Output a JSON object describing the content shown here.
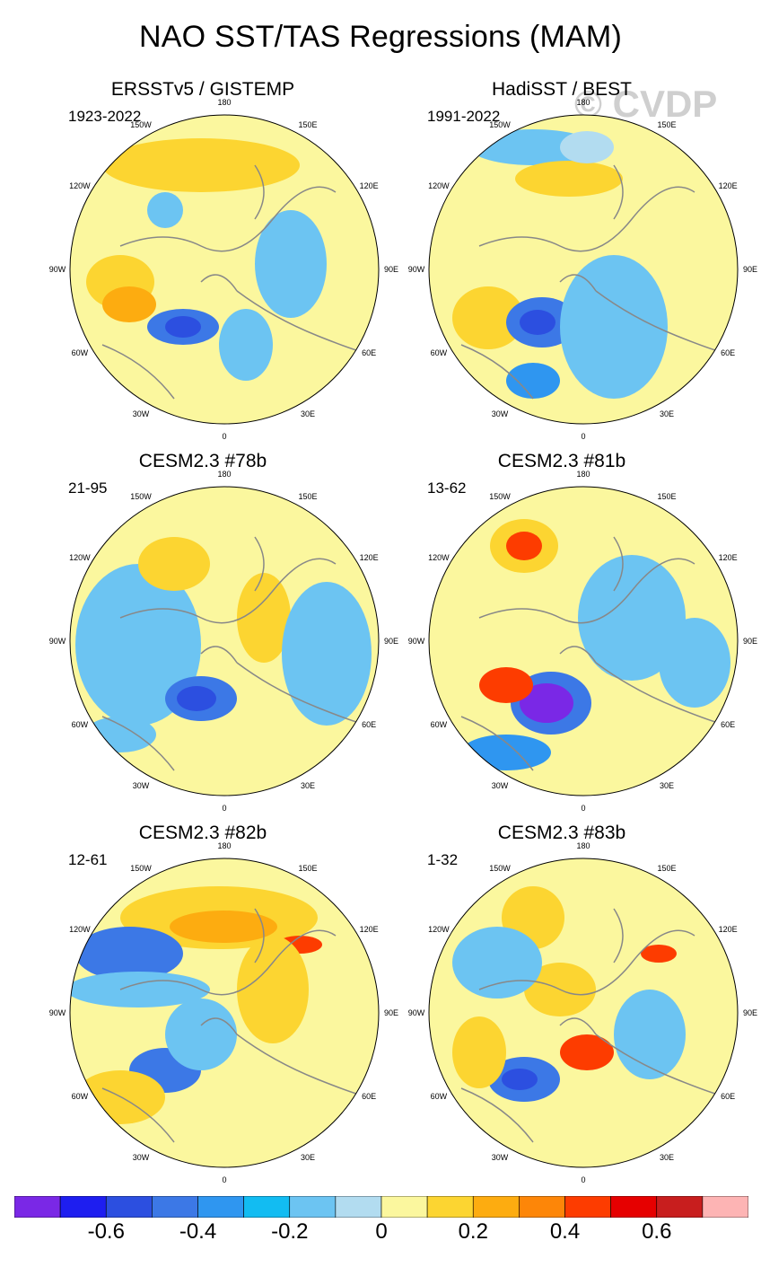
{
  "title": "NAO SST/TAS Regressions (MAM)",
  "watermark": "© CVDP",
  "longitude_labels": [
    "180",
    "150E",
    "120E",
    "90E",
    "60E",
    "30E",
    "0",
    "30W",
    "60W",
    "90W",
    "120W",
    "150W"
  ],
  "panels": [
    {
      "title": "ERSSTv5 / GISTEMP",
      "period": "1923-2022"
    },
    {
      "title": "HadiSST / BEST",
      "period": "1991-2022"
    },
    {
      "title": "CESM2.3 #78b",
      "period": "21-95"
    },
    {
      "title": "CESM2.3 #81b",
      "period": "13-62"
    },
    {
      "title": "CESM2.3 #82b",
      "period": "12-61"
    },
    {
      "title": "CESM2.3 #83b",
      "period": "1-32"
    }
  ],
  "colorbar": {
    "colors": [
      "#7a28e6",
      "#1e1ef0",
      "#2c4fe0",
      "#3c78e6",
      "#2f96f0",
      "#12bcf2",
      "#6cc4f2",
      "#b2dcf0",
      "#fbf79e",
      "#fcd531",
      "#fdac10",
      "#fd8608",
      "#fd3c00",
      "#e60000",
      "#c81e1e",
      "#fdb4b4"
    ],
    "labels": [
      "-0.6",
      "-0.4",
      "-0.2",
      "0",
      "0.2",
      "0.4",
      "0.6"
    ]
  }
}
